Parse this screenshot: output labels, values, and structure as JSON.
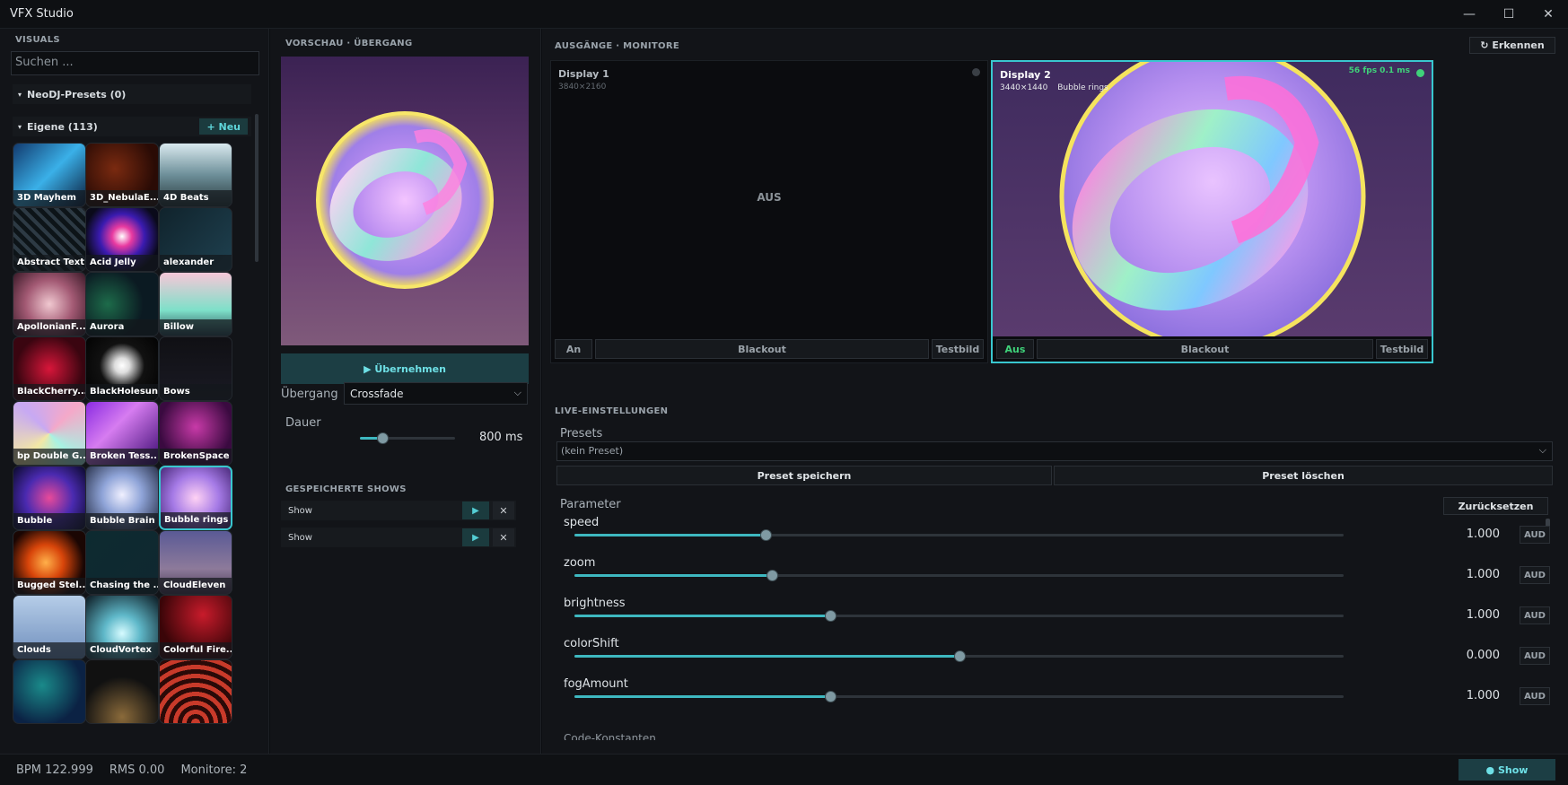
{
  "window": {
    "title": "VFX Studio",
    "minimize": "—",
    "maximize": "☐",
    "close": "✕"
  },
  "visuals": {
    "section_label": "VISUALS",
    "search_placeholder": "Suchen ...",
    "group_neodj": "NeoDJ-Presets  (0)",
    "group_eigene": "Eigene  (113)",
    "new_label": "+ Neu",
    "tiles": [
      "3D Mayhem",
      "3D_NebulaE...",
      "4D Beats",
      "Abstract Text",
      "Acid Jelly",
      "alexander",
      "ApollonianF...",
      "Aurora",
      "Billow",
      "BlackCherry...",
      "BlackHolesun",
      "Bows",
      "bp Double G...",
      "Broken Tess...",
      "BrokenSpace",
      "Bubble",
      "Bubble Brain",
      "Bubble rings",
      "Bugged Stel...",
      "Chasing the ...",
      "CloudEleven",
      "Clouds",
      "CloudVortex",
      "Colorful Fire..."
    ],
    "selected": "Bubble rings"
  },
  "preview": {
    "section_label": "VORSCHAU · ÜBERGANG",
    "apply_label": "▶ Übernehmen",
    "transition_label": "Übergang",
    "transition_value": "Crossfade",
    "duration_label": "Dauer",
    "duration_value": "800 ms",
    "duration_fraction": 0.24
  },
  "saved_shows": {
    "section_label": "GESPEICHERTE SHOWS",
    "items": [
      {
        "name": "Show"
      },
      {
        "name": "Show"
      }
    ],
    "play_icon": "▶",
    "remove_icon": "✕"
  },
  "outputs": {
    "section_label": "AUSGÄNGE · MONITORE",
    "detect_label": "↻ Erkennen",
    "displays": [
      {
        "name": "Display 1",
        "resolution": "3840×2160",
        "visual": "",
        "state_text": "AUS",
        "fps": "",
        "on_label": "An",
        "blackout_label": "Blackout",
        "test_label": "Testbild",
        "status_color": "#3a3f45"
      },
      {
        "name": "Display 2",
        "resolution": "3440×1440",
        "visual": "Bubble rings",
        "state_text": "",
        "fps": "56 fps   0.1 ms",
        "on_label": "Aus",
        "blackout_label": "Blackout",
        "test_label": "Testbild",
        "status_color": "#3fd27a"
      }
    ]
  },
  "live": {
    "section_label": "LIVE-EINSTELLUNGEN",
    "presets_label": "Presets",
    "preset_value": "(kein Preset)",
    "save_preset": "Preset speichern",
    "delete_preset": "Preset löschen",
    "params_label": "Parameter",
    "reset_label": "Zurücksetzen",
    "params": [
      {
        "name": "speed",
        "value": "1.000",
        "fraction": 0.248,
        "aud": "AUD"
      },
      {
        "name": "zoom",
        "value": "1.000",
        "fraction": 0.257,
        "aud": "AUD"
      },
      {
        "name": "brightness",
        "value": "1.000",
        "fraction": 0.332,
        "aud": "AUD"
      },
      {
        "name": "colorShift",
        "value": "0.000",
        "fraction": 0.501,
        "aud": "AUD"
      },
      {
        "name": "fogAmount",
        "value": "1.000",
        "fraction": 0.332,
        "aud": "AUD"
      }
    ],
    "cut_off_label": "Code-Konstanten"
  },
  "status": {
    "bpm": "BPM 122.999",
    "rms": "RMS 0.00",
    "monitors": "Monitore: 2",
    "show_label": "● Show"
  },
  "colors": {
    "accent": "#39c7cf",
    "accent_dark": "#1c3e44",
    "bg": "#121418"
  }
}
